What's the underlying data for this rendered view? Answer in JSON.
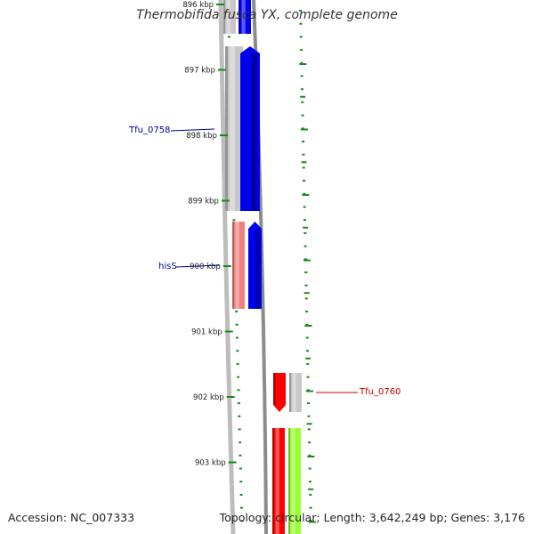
{
  "title": "Thermobifida fusca YX, complete genome",
  "accession": "Accession: NC_007333",
  "summary": "Topology: circular; Length: 3,642,249 bp; Genes: 3,176",
  "colors": {
    "tick": "#1a8a1a",
    "backbone": "#8c8c8c",
    "label_blue": "#00008b",
    "label_red": "#cc0000",
    "gene_blue": "#0000ee",
    "gene_gray": "#c8c8c8",
    "gene_pink": "#f08080",
    "gene_red": "#ff0000",
    "gene_green": "#99ff33"
  },
  "ruler": [
    {
      "label": "896 kbp"
    },
    {
      "label": "897 kbp"
    },
    {
      "label": "898 kbp"
    },
    {
      "label": "899 kbp"
    },
    {
      "label": "900 kbp"
    },
    {
      "label": "901 kbp"
    },
    {
      "label": "902 kbp"
    },
    {
      "label": "903 kbp"
    }
  ],
  "features": [
    {
      "name": "Tfu_0758",
      "color": "label_blue"
    },
    {
      "name": "hisS",
      "color": "label_blue"
    },
    {
      "name": "Tfu_0760",
      "color": "label_red"
    }
  ]
}
